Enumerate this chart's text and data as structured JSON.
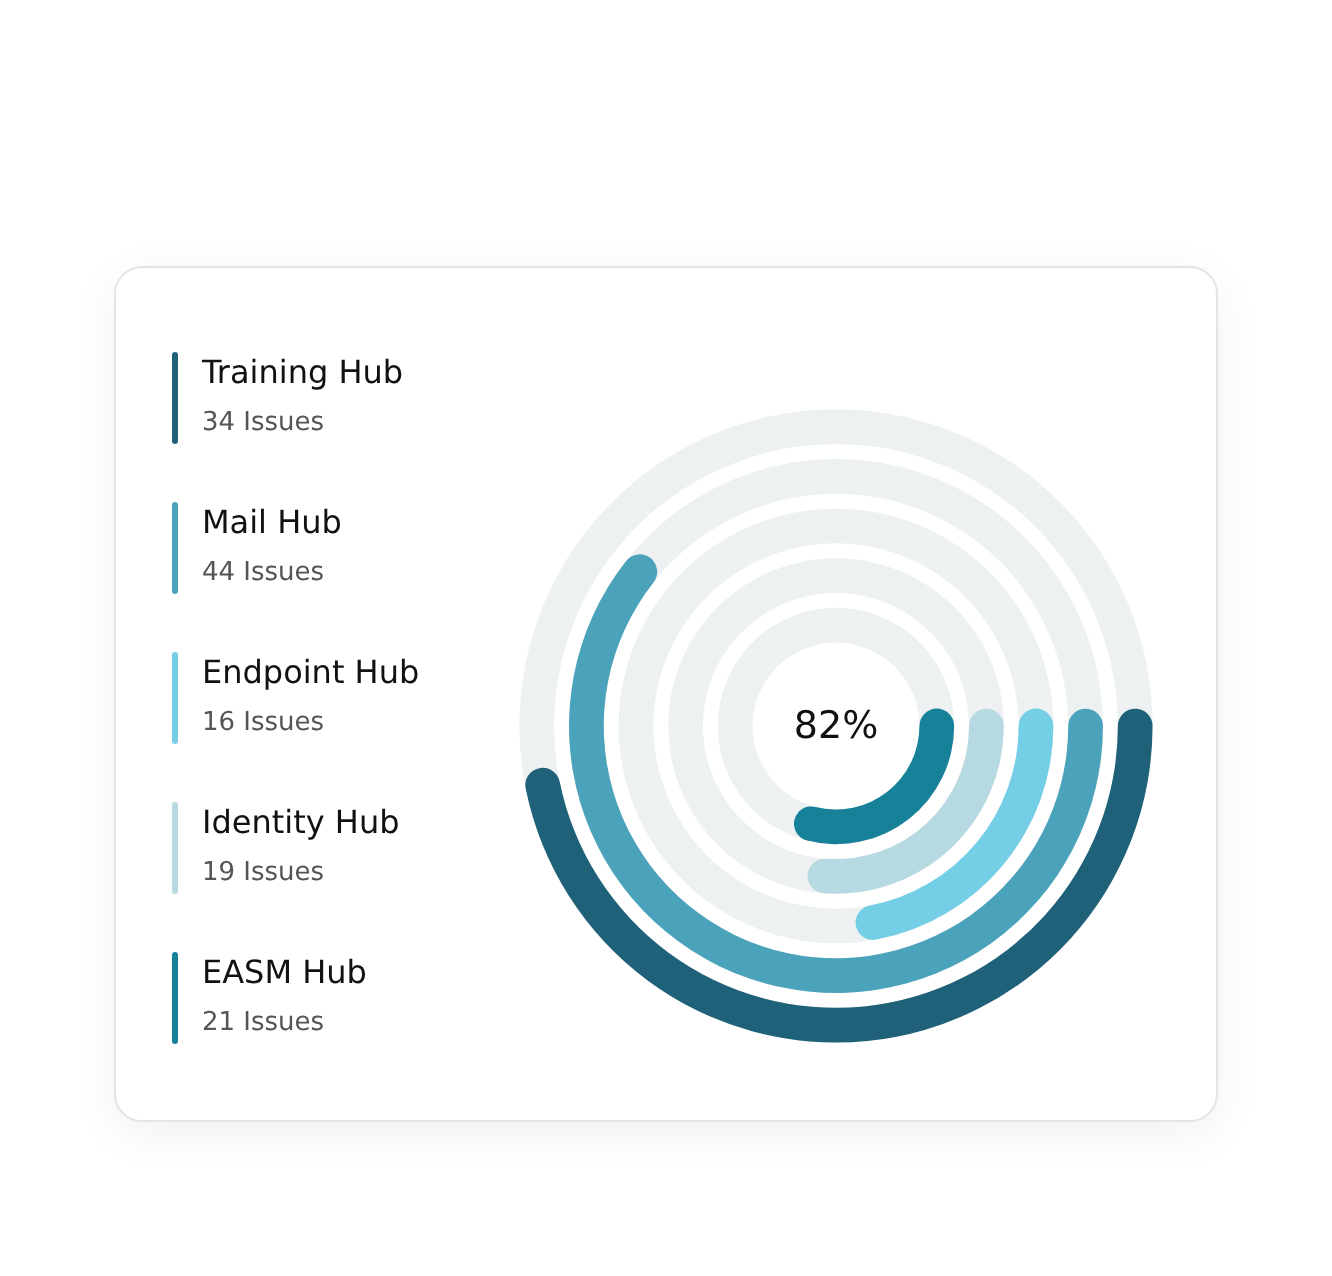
{
  "chart_data": {
    "type": "other",
    "categories": [
      "Training Hub",
      "Mail Hub",
      "Endpoint Hub",
      "Identity Hub",
      "EASM Hub"
    ],
    "values": [
      34,
      44,
      16,
      19,
      21
    ],
    "value_labels": [
      "34 Issues",
      "44 Issues",
      "16 Issues",
      "19 Issues",
      "21 Issues"
    ],
    "colors": [
      "#1f6179",
      "#4aa2bb",
      "#74cfe6",
      "#b7d9e1",
      "#168199"
    ],
    "annotations": [
      "82%"
    ]
  }
}
